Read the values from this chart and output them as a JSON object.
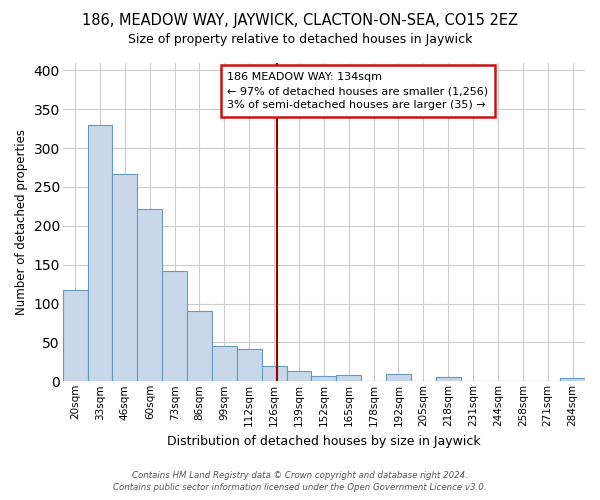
{
  "title": "186, MEADOW WAY, JAYWICK, CLACTON-ON-SEA, CO15 2EZ",
  "subtitle": "Size of property relative to detached houses in Jaywick",
  "xlabel": "Distribution of detached houses by size in Jaywick",
  "ylabel": "Number of detached properties",
  "bin_labels": [
    "20sqm",
    "33sqm",
    "46sqm",
    "60sqm",
    "73sqm",
    "86sqm",
    "99sqm",
    "112sqm",
    "126sqm",
    "139sqm",
    "152sqm",
    "165sqm",
    "178sqm",
    "192sqm",
    "205sqm",
    "218sqm",
    "231sqm",
    "244sqm",
    "258sqm",
    "271sqm",
    "284sqm"
  ],
  "bar_heights": [
    118,
    330,
    267,
    222,
    142,
    91,
    45,
    41,
    20,
    13,
    7,
    8,
    0,
    9,
    0,
    5,
    0,
    0,
    0,
    0,
    4
  ],
  "bar_color": "#c8d8ea",
  "bar_edge_color": "#6699bb",
  "ylim": [
    0,
    410
  ],
  "yticks": [
    0,
    50,
    100,
    150,
    200,
    250,
    300,
    350,
    400
  ],
  "vline_x": 8.615,
  "vline_color": "#990000",
  "annotation_title": "186 MEADOW WAY: 134sqm",
  "annotation_line1": "← 97% of detached houses are smaller (1,256)",
  "annotation_line2": "3% of semi-detached houses are larger (35) →",
  "footer_line1": "Contains HM Land Registry data © Crown copyright and database right 2024.",
  "footer_line2": "Contains public sector information licensed under the Open Government Licence v3.0.",
  "background_color": "#ffffff",
  "plot_bg_color": "#ffffff",
  "grid_color": "#cccccc"
}
